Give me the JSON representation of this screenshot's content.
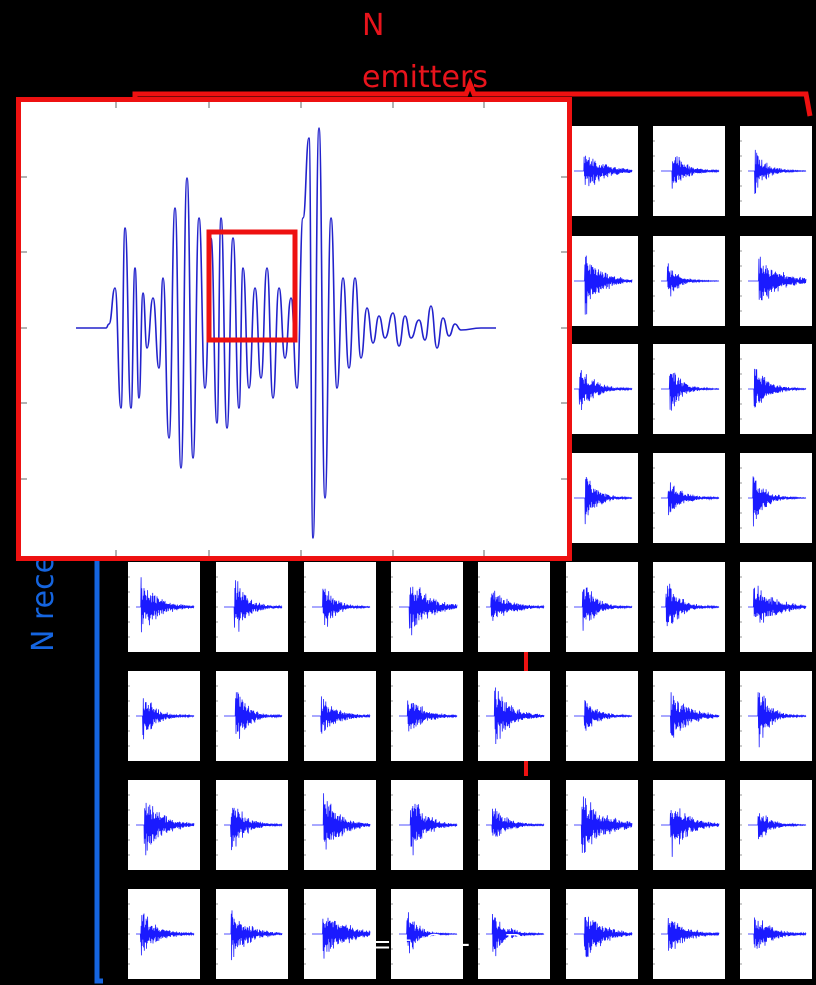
{
  "labels": {
    "emitters_line1": "N",
    "emitters_line2": "emitters",
    "receivers": "N receivers"
  },
  "equation": "= t_S + t_R",
  "grid": {
    "rows": 8,
    "cols": 8
  },
  "colors": {
    "background": "#000000",
    "emitter_bracket": "#ee1111",
    "receiver_bracket": "#1565e0",
    "waveform": "#1a1aff",
    "highlight_box": "#ee1111"
  }
}
